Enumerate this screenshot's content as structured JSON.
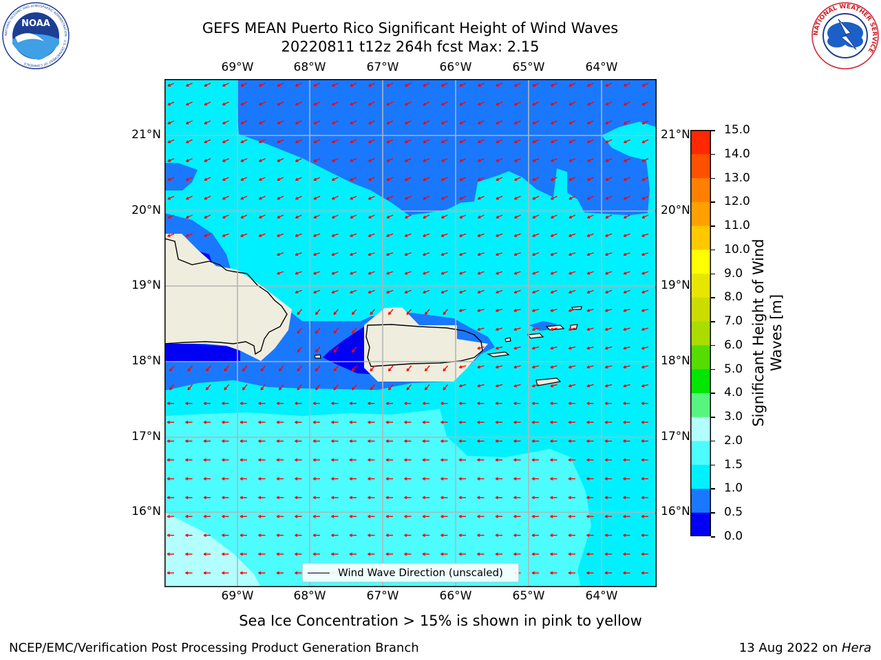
{
  "header": {
    "title_line1": "GEFS MEAN Puerto Rico Significant Height of Wind Waves",
    "title_line2": "20220811 t12z 264h fcst   Max: 2.15"
  },
  "logos": {
    "noaa_text": "NOAA",
    "noaa_ring": "NATIONAL OCEANIC AND ATMOSPHERIC ADMINISTRATION · U.S. DEPARTMENT OF COMMERCE",
    "nws_ring": "NATIONAL WEATHER SERVICE"
  },
  "axes": {
    "lon_labels": [
      "69°W",
      "68°W",
      "67°W",
      "66°W",
      "65°W",
      "64°W"
    ],
    "lat_labels": [
      "21°N",
      "20°N",
      "19°N",
      "18°N",
      "17°N",
      "16°N"
    ]
  },
  "colorbar": {
    "label_line1": "Significant Height of Wind",
    "label_line2": "Waves [m]",
    "ticks": [
      "0.0",
      "0.5",
      "1.0",
      "1.5",
      "2.0",
      "3.0",
      "4.0",
      "5.0",
      "6.0",
      "7.0",
      "8.0",
      "9.0",
      "10.0",
      "11.0",
      "12.0",
      "13.0",
      "14.0",
      "15.0"
    ],
    "colors": [
      "#0000f5",
      "#1a78ff",
      "#00f0ff",
      "#4dfcff",
      "#b3ffff",
      "#55f580",
      "#00e600",
      "#55dc00",
      "#aadc00",
      "#ccdc00",
      "#e6e600",
      "#ffff00",
      "#ffc800",
      "#ffa000",
      "#ff8000",
      "#ff5000",
      "#ff2800",
      "#ff0000"
    ]
  },
  "legend": {
    "label": "Wind Wave Direction (unscaled)"
  },
  "footer": {
    "sea_ice_note": "Sea Ice Concentration > 15% is shown in pink to yellow",
    "branch": "NCEP/EMC/Verification Post Processing Product Generation Branch",
    "date": "13 Aug 2022 on ",
    "host": "Hera"
  },
  "map_colors": {
    "land": "#efedde",
    "band_0_0_5": "#0000f5",
    "band_0_5_1_0": "#1a78ff",
    "band_1_0_1_5": "#00f0ff",
    "band_1_5_2_0": "#4dfcff",
    "band_2_0_3_0": "#b3ffff",
    "arrow": "#ff0000",
    "grid": "#b4b4b4"
  }
}
